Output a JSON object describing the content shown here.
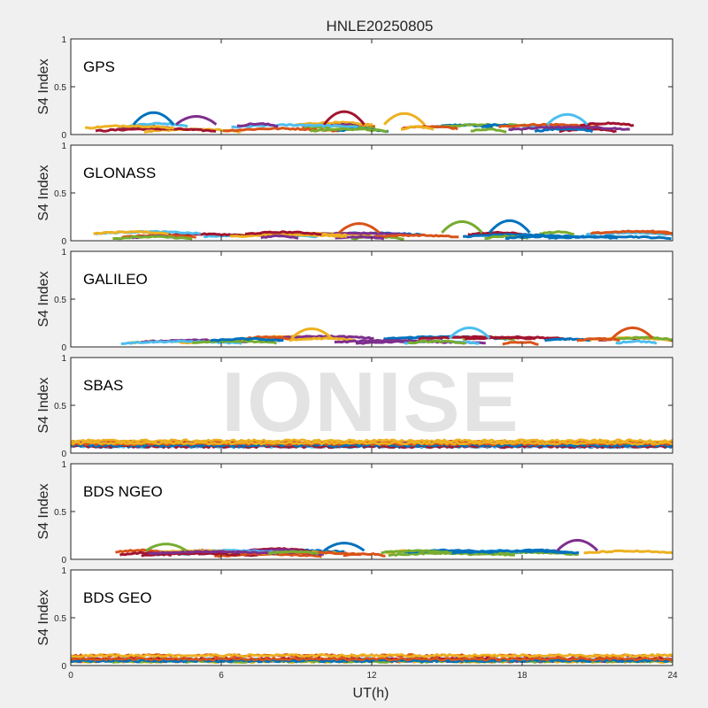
{
  "chart_data": {
    "type": "line",
    "title": "HNLE20250805",
    "xlabel": "UT(h)",
    "xlim": [
      0,
      24
    ],
    "xticks": [
      0,
      6,
      12,
      18,
      24
    ],
    "ylim": [
      0,
      1
    ],
    "yticks": [
      0,
      0.5,
      1
    ],
    "ytick_labels": [
      "0",
      "0.5",
      "1"
    ],
    "watermark": "IONISE",
    "series_colors": [
      "#0072BD",
      "#D95319",
      "#EDB120",
      "#7E2F8E",
      "#77AC30",
      "#4DBEEE",
      "#A2142F"
    ],
    "panels": [
      {
        "label": "GPS",
        "ylabel": "S4 Index",
        "typical_s4_range": [
          0.03,
          0.15
        ],
        "peak_events": [
          {
            "t": 3.3,
            "s4": 0.23
          },
          {
            "t": 5.0,
            "s4": 0.19
          },
          {
            "t": 10.9,
            "s4": 0.24
          },
          {
            "t": 13.3,
            "s4": 0.22
          },
          {
            "t": 19.8,
            "s4": 0.21
          }
        ]
      },
      {
        "label": "GLONASS",
        "ylabel": "S4 Index",
        "typical_s4_range": [
          0.02,
          0.12
        ],
        "peak_events": [
          {
            "t": 11.5,
            "s4": 0.18
          },
          {
            "t": 15.6,
            "s4": 0.2
          },
          {
            "t": 17.5,
            "s4": 0.21
          }
        ]
      },
      {
        "label": "GALILEO",
        "ylabel": "S4 Index",
        "typical_s4_range": [
          0.03,
          0.13
        ],
        "peak_events": [
          {
            "t": 9.6,
            "s4": 0.19
          },
          {
            "t": 15.9,
            "s4": 0.2
          },
          {
            "t": 22.4,
            "s4": 0.2
          }
        ]
      },
      {
        "label": "SBAS",
        "ylabel": "S4 Index",
        "typical_s4_range": [
          0.06,
          0.18
        ],
        "peak_events": []
      },
      {
        "label": "BDS NGEO",
        "ylabel": "S4 Index",
        "typical_s4_range": [
          0.03,
          0.13
        ],
        "peak_events": [
          {
            "t": 3.8,
            "s4": 0.16
          },
          {
            "t": 10.9,
            "s4": 0.17
          },
          {
            "t": 20.2,
            "s4": 0.2
          }
        ]
      },
      {
        "label": "BDS GEO",
        "ylabel": "S4 Index",
        "typical_s4_range": [
          0.04,
          0.16
        ],
        "peak_events": []
      }
    ]
  }
}
